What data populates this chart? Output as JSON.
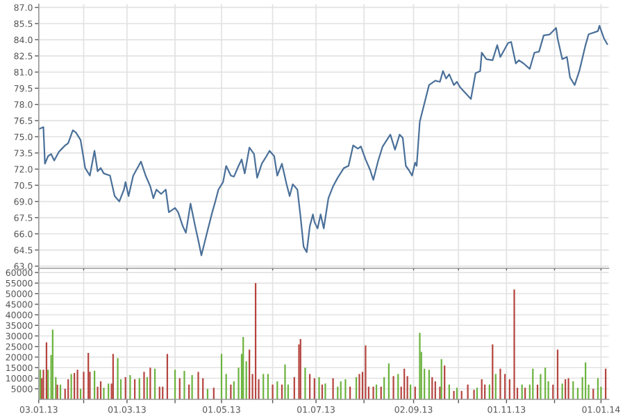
{
  "chart_data": [
    {
      "type": "line",
      "xlim": [
        "2013-01-03",
        "2014-01-06"
      ],
      "ylim": [
        62.8,
        87.3
      ],
      "tick_labels": "y",
      "grid": true,
      "marker": "none",
      "line_style": "solid",
      "xticks": [
        {
          "value": "2013-01-03",
          "label": null
        },
        {
          "value": "2013-02-01",
          "label": null
        },
        {
          "value": "2013-03-01",
          "label": null
        },
        {
          "value": "2013-04-01",
          "label": null
        },
        {
          "value": "2013-05-01",
          "label": null
        },
        {
          "value": "2013-06-03",
          "label": null
        },
        {
          "value": "2013-07-01",
          "label": null
        },
        {
          "value": "2013-08-01",
          "label": null
        },
        {
          "value": "2013-09-02",
          "label": null
        },
        {
          "value": "2013-10-01",
          "label": null
        },
        {
          "value": "2013-11-01",
          "label": null
        },
        {
          "value": "2013-12-02",
          "label": null
        },
        {
          "value": "2014-01-01",
          "label": null
        }
      ],
      "yticks": [
        {
          "value": 63,
          "label": "63.0"
        },
        {
          "value": 64.5,
          "label": "64.5"
        },
        {
          "value": 66,
          "label": "66.0"
        },
        {
          "value": 67.5,
          "label": "67.5"
        },
        {
          "value": 69,
          "label": "69.0"
        },
        {
          "value": 70.5,
          "label": "70.5"
        },
        {
          "value": 72,
          "label": "72.0"
        },
        {
          "value": 73.5,
          "label": "73.5"
        },
        {
          "value": 75,
          "label": "75.0"
        },
        {
          "value": 76.5,
          "label": "76.5"
        },
        {
          "value": 78,
          "label": "78.0"
        },
        {
          "value": 79.5,
          "label": "79.5"
        },
        {
          "value": 81,
          "label": "81.0"
        },
        {
          "value": 82.5,
          "label": "82.5"
        },
        {
          "value": 84,
          "label": "84.0"
        },
        {
          "value": 85.5,
          "label": "85.5"
        },
        {
          "value": 87,
          "label": "87.0"
        }
      ],
      "series": [
        {
          "color": "#4a7099",
          "x": [
            "2013-01-03",
            "2013-01-06",
            "2013-01-07",
            "2013-01-09",
            "2013-01-11",
            "2013-01-13",
            "2013-01-16",
            "2013-01-18",
            "2013-01-20",
            "2013-01-22",
            "2013-01-25",
            "2013-01-27",
            "2013-01-30",
            "2013-02-02",
            "2013-02-05",
            "2013-02-08",
            "2013-02-10",
            "2013-02-12",
            "2013-02-14",
            "2013-02-18",
            "2013-02-21",
            "2013-02-24",
            "2013-02-27",
            "2013-02-28",
            "2013-03-02",
            "2013-03-05",
            "2013-03-10",
            "2013-03-13",
            "2013-03-16",
            "2013-03-18",
            "2013-03-20",
            "2013-03-23",
            "2013-03-26",
            "2013-03-28",
            "2013-04-01",
            "2013-04-03",
            "2013-04-06",
            "2013-04-08",
            "2013-04-11",
            "2013-04-14",
            "2013-04-16",
            "2013-04-18",
            "2013-04-22",
            "2013-04-25",
            "2013-04-27",
            "2013-04-29",
            "2013-05-02",
            "2013-05-04",
            "2013-05-07",
            "2013-05-09",
            "2013-05-12",
            "2013-05-14",
            "2013-05-16",
            "2013-05-19",
            "2013-05-22",
            "2013-05-24",
            "2013-05-27",
            "2013-05-30",
            "2013-06-01",
            "2013-06-04",
            "2013-06-06",
            "2013-06-09",
            "2013-06-12",
            "2013-06-14",
            "2013-06-16",
            "2013-06-19",
            "2013-06-21",
            "2013-06-23",
            "2013-06-25",
            "2013-06-27",
            "2013-06-29",
            "2013-06-30",
            "2013-07-02",
            "2013-07-04",
            "2013-07-06",
            "2013-07-09",
            "2013-07-12",
            "2013-07-15",
            "2013-07-19",
            "2013-07-22",
            "2013-07-25",
            "2013-07-28",
            "2013-07-30",
            "2013-08-02",
            "2013-08-05",
            "2013-08-07",
            "2013-08-10",
            "2013-08-13",
            "2013-08-18",
            "2013-08-21",
            "2013-08-24",
            "2013-08-26",
            "2013-08-28",
            "2013-08-30",
            "2013-09-01",
            "2013-09-03",
            "2013-09-04",
            "2013-09-06",
            "2013-09-09",
            "2013-09-12",
            "2013-09-16",
            "2013-09-19",
            "2013-09-21",
            "2013-09-23",
            "2013-09-25",
            "2013-09-28",
            "2013-09-30",
            "2013-10-02",
            "2013-10-09",
            "2013-10-12",
            "2013-10-15",
            "2013-10-16",
            "2013-10-19",
            "2013-10-23",
            "2013-10-26",
            "2013-10-28",
            "2013-11-02",
            "2013-11-04",
            "2013-11-07",
            "2013-11-09",
            "2013-11-12",
            "2013-11-16",
            "2013-11-19",
            "2013-11-22",
            "2013-11-25",
            "2013-11-29",
            "2013-12-03",
            "2013-12-04",
            "2013-12-07",
            "2013-12-10",
            "2013-12-12",
            "2013-12-15",
            "2013-12-18",
            "2013-12-22",
            "2013-12-24",
            "2013-12-30",
            "2013-12-31",
            "2014-01-03",
            "2014-01-05"
          ],
          "values": [
            75.7,
            75.9,
            72.5,
            73.2,
            73.4,
            72.8,
            73.6,
            73.9,
            74.2,
            74.4,
            75.6,
            75.4,
            74.7,
            72.1,
            71.4,
            73.7,
            71.8,
            72.1,
            71.6,
            71.4,
            69.5,
            69.0,
            70.1,
            70.8,
            69.5,
            71.4,
            72.7,
            71.4,
            70.4,
            69.3,
            70.1,
            69.7,
            70.1,
            68.0,
            68.4,
            68.0,
            66.7,
            66.1,
            68.8,
            66.7,
            65.4,
            64.0,
            66.3,
            68.0,
            69.0,
            70.1,
            70.8,
            72.3,
            71.4,
            71.3,
            72.3,
            72.9,
            71.6,
            74.0,
            73.4,
            71.2,
            72.5,
            73.2,
            73.7,
            73.2,
            71.4,
            72.5,
            70.6,
            69.5,
            70.6,
            70.1,
            67.6,
            64.8,
            64.3,
            66.7,
            67.8,
            67.1,
            66.5,
            67.8,
            66.5,
            69.3,
            70.4,
            71.2,
            72.1,
            72.3,
            74.2,
            73.9,
            74.1,
            72.9,
            71.9,
            71.0,
            72.7,
            74.1,
            75.2,
            73.8,
            75.2,
            74.9,
            72.3,
            71.9,
            71.4,
            72.6,
            72.3,
            76.4,
            78.1,
            79.8,
            80.2,
            80.1,
            81.1,
            80.4,
            80.8,
            79.8,
            80.1,
            79.6,
            78.5,
            80.9,
            81.1,
            82.8,
            82.2,
            82.1,
            83.5,
            82.4,
            83.7,
            83.8,
            81.8,
            82.1,
            81.8,
            81.3,
            82.8,
            82.9,
            84.4,
            84.5,
            85.1,
            84.1,
            82.2,
            82.4,
            80.5,
            79.8,
            81.1,
            83.5,
            84.5,
            84.8,
            85.3,
            84.1,
            83.6
          ]
        }
      ]
    },
    {
      "type": "bar",
      "xlim": [
        "2013-01-03",
        "2014-01-06"
      ],
      "ylim": [
        0,
        61000
      ],
      "grid": true,
      "xticks": [
        {
          "value": "2013-01-03",
          "label": "03.01.13"
        },
        {
          "value": "2013-02-01",
          "label": null
        },
        {
          "value": "2013-03-01",
          "label": "01.03.13"
        },
        {
          "value": "2013-04-01",
          "label": null
        },
        {
          "value": "2013-05-01",
          "label": "01.05.13"
        },
        {
          "value": "2013-06-03",
          "label": null
        },
        {
          "value": "2013-07-01",
          "label": "01.07.13"
        },
        {
          "value": "2013-08-01",
          "label": null
        },
        {
          "value": "2013-09-02",
          "label": "02.09.13"
        },
        {
          "value": "2013-10-01",
          "label": null
        },
        {
          "value": "2013-11-01",
          "label": "01.11.13"
        },
        {
          "value": "2013-12-02",
          "label": null
        },
        {
          "value": "2014-01-01",
          "label": "01.01.14"
        }
      ],
      "yticks": [
        5000,
        10000,
        15000,
        20000,
        25000,
        30000,
        35000,
        40000,
        45000,
        50000,
        55000,
        60000
      ],
      "x": [
        "2013-01-04",
        "2013-01-05",
        "2013-01-06",
        "2013-01-08",
        "2013-01-09",
        "2013-01-11",
        "2013-01-12",
        "2013-01-14",
        "2013-01-15",
        "2013-01-17",
        "2013-01-20",
        "2013-01-22",
        "2013-01-24",
        "2013-01-26",
        "2013-01-28",
        "2013-01-30",
        "2013-02-01",
        "2013-02-04",
        "2013-02-05",
        "2013-02-08",
        "2013-02-10",
        "2013-02-12",
        "2013-02-14",
        "2013-02-17",
        "2013-02-19",
        "2013-02-20",
        "2013-02-23",
        "2013-02-25",
        "2013-02-28",
        "2013-03-03",
        "2013-03-06",
        "2013-03-09",
        "2013-03-12",
        "2013-03-14",
        "2013-03-16",
        "2013-03-19",
        "2013-03-22",
        "2013-03-24",
        "2013-03-27",
        "2013-04-01",
        "2013-04-04",
        "2013-04-07",
        "2013-04-10",
        "2013-04-12",
        "2013-04-16",
        "2013-04-19",
        "2013-04-22",
        "2013-04-26",
        "2013-05-01",
        "2013-05-04",
        "2013-05-07",
        "2013-05-09",
        "2013-05-12",
        "2013-05-14",
        "2013-05-15",
        "2013-05-17",
        "2013-05-19",
        "2013-05-21",
        "2013-05-23",
        "2013-05-25",
        "2013-05-28",
        "2013-05-31",
        "2013-06-03",
        "2013-06-06",
        "2013-06-09",
        "2013-06-11",
        "2013-06-13",
        "2013-06-17",
        "2013-06-20",
        "2013-06-21",
        "2013-06-24",
        "2013-06-27",
        "2013-06-30",
        "2013-07-03",
        "2013-07-05",
        "2013-07-07",
        "2013-07-12",
        "2013-07-15",
        "2013-07-17",
        "2013-07-20",
        "2013-07-23",
        "2013-07-27",
        "2013-07-29",
        "2013-07-31",
        "2013-08-02",
        "2013-08-04",
        "2013-08-07",
        "2013-08-09",
        "2013-08-12",
        "2013-08-14",
        "2013-08-17",
        "2013-08-20",
        "2013-08-23",
        "2013-08-25",
        "2013-08-27",
        "2013-08-29",
        "2013-08-31",
        "2013-09-03",
        "2013-09-06",
        "2013-09-07",
        "2013-09-09",
        "2013-09-12",
        "2013-09-14",
        "2013-09-16",
        "2013-09-19",
        "2013-09-20",
        "2013-09-22",
        "2013-09-25",
        "2013-09-28",
        "2013-09-30",
        "2013-10-03",
        "2013-10-07",
        "2013-10-11",
        "2013-10-13",
        "2013-10-16",
        "2013-10-18",
        "2013-10-21",
        "2013-10-23",
        "2013-10-25",
        "2013-10-28",
        "2013-10-31",
        "2013-11-03",
        "2013-11-06",
        "2013-11-08",
        "2013-11-11",
        "2013-11-13",
        "2013-11-16",
        "2013-11-18",
        "2013-11-21",
        "2013-11-23",
        "2013-11-26",
        "2013-11-28",
        "2013-12-01",
        "2013-12-04",
        "2013-12-07",
        "2013-12-09",
        "2013-12-11",
        "2013-12-14",
        "2013-12-17",
        "2013-12-20",
        "2013-12-22",
        "2013-12-24",
        "2013-12-27",
        "2013-12-30",
        "2014-01-01",
        "2014-01-04"
      ],
      "values": [
        14000,
        10000,
        14000,
        27000,
        14000,
        21000,
        33000,
        10500,
        7000,
        7000,
        5000,
        9500,
        12000,
        12500,
        14000,
        5000,
        13000,
        22000,
        13000,
        13500,
        6000,
        8500,
        5500,
        7500,
        7500,
        21500,
        19500,
        9500,
        10500,
        11500,
        9500,
        10000,
        13000,
        10500,
        15000,
        14500,
        6000,
        6000,
        21500,
        14000,
        10000,
        13500,
        7000,
        11500,
        13000,
        10000,
        5000,
        5500,
        21500,
        12000,
        7000,
        8500,
        15000,
        21500,
        29500,
        18000,
        23500,
        12000,
        55000,
        9500,
        12000,
        12000,
        7000,
        8500,
        7000,
        16500,
        7000,
        10500,
        26000,
        28500,
        15000,
        12000,
        10000,
        10500,
        7000,
        7500,
        10000,
        6000,
        8500,
        9500,
        6000,
        10500,
        12000,
        13000,
        25500,
        6000,
        6000,
        7000,
        6000,
        10500,
        17000,
        11000,
        12000,
        6000,
        14500,
        11000,
        7000,
        6000,
        31500,
        22500,
        14500,
        14000,
        10500,
        8500,
        6000,
        19000,
        16000,
        7000,
        4000,
        5500,
        4000,
        7000,
        4500,
        5500,
        9500,
        7000,
        7000,
        26000,
        12000,
        14500,
        12000,
        9500,
        52000,
        5500,
        7000,
        5500,
        7000,
        14500,
        7000,
        12000,
        15000,
        8500,
        7000,
        23500,
        7500,
        9500,
        10000,
        8500,
        5500,
        10500,
        17500,
        7000,
        5000,
        10000,
        6000,
        14500
      ],
      "colors": [
        "#6cb33f",
        "#b5443f",
        "#b5443f",
        "#b5443f",
        "#6cb33f",
        "#6cb33f",
        "#6cb33f",
        "#6cb33f",
        "#b5443f",
        "#6cb33f",
        "#b5443f",
        "#b5443f",
        "#6cb33f",
        "#b5443f",
        "#b5443f",
        "#6cb33f",
        "#b5443f",
        "#b5443f",
        "#b5443f",
        "#6cb33f",
        "#b5443f",
        "#b5443f",
        "#6cb33f",
        "#6cb33f",
        "#b5443f",
        "#b5443f",
        "#6cb33f",
        "#6cb33f",
        "#b5443f",
        "#6cb33f",
        "#b5443f",
        "#6cb33f",
        "#b5443f",
        "#6cb33f",
        "#b5443f",
        "#6cb33f",
        "#b5443f",
        "#b5443f",
        "#b5443f",
        "#6cb33f",
        "#b5443f",
        "#6cb33f",
        "#b5443f",
        "#6cb33f",
        "#b5443f",
        "#b5443f",
        "#6cb33f",
        "#b5443f",
        "#6cb33f",
        "#6cb33f",
        "#b5443f",
        "#6cb33f",
        "#6cb33f",
        "#6cb33f",
        "#6cb33f",
        "#6cb33f",
        "#b5443f",
        "#b5443f",
        "#b5443f",
        "#b5443f",
        "#6cb33f",
        "#6cb33f",
        "#b5443f",
        "#6cb33f",
        "#b5443f",
        "#6cb33f",
        "#6cb33f",
        "#b5443f",
        "#b5443f",
        "#b5443f",
        "#6cb33f",
        "#b5443f",
        "#b5443f",
        "#6cb33f",
        "#b5443f",
        "#6cb33f",
        "#b5443f",
        "#6cb33f",
        "#6cb33f",
        "#6cb33f",
        "#b5443f",
        "#6cb33f",
        "#b5443f",
        "#b5443f",
        "#b5443f",
        "#b5443f",
        "#b5443f",
        "#6cb33f",
        "#b5443f",
        "#6cb33f",
        "#6cb33f",
        "#b5443f",
        "#6cb33f",
        "#b5443f",
        "#b5443f",
        "#b5443f",
        "#6cb33f",
        "#b5443f",
        "#6cb33f",
        "#6cb33f",
        "#6cb33f",
        "#6cb33f",
        "#b5443f",
        "#b5443f",
        "#b5443f",
        "#6cb33f",
        "#b5443f",
        "#6cb33f",
        "#b5443f",
        "#6cb33f",
        "#b5443f",
        "#b5443f",
        "#b5443f",
        "#6cb33f",
        "#b5443f",
        "#b5443f",
        "#6cb33f",
        "#b5443f",
        "#6cb33f",
        "#b5443f",
        "#b5443f",
        "#b5443f",
        "#b5443f",
        "#b5443f",
        "#6cb33f",
        "#b5443f",
        "#6cb33f",
        "#6cb33f",
        "#b5443f",
        "#6cb33f",
        "#6cb33f",
        "#6cb33f",
        "#b5443f",
        "#b5443f",
        "#6cb33f",
        "#b5443f",
        "#b5443f",
        "#6cb33f",
        "#6cb33f",
        "#6cb33f",
        "#6cb33f",
        "#6cb33f",
        "#b5443f",
        "#6cb33f",
        "#6cb33f",
        "#b5443f"
      ]
    }
  ]
}
